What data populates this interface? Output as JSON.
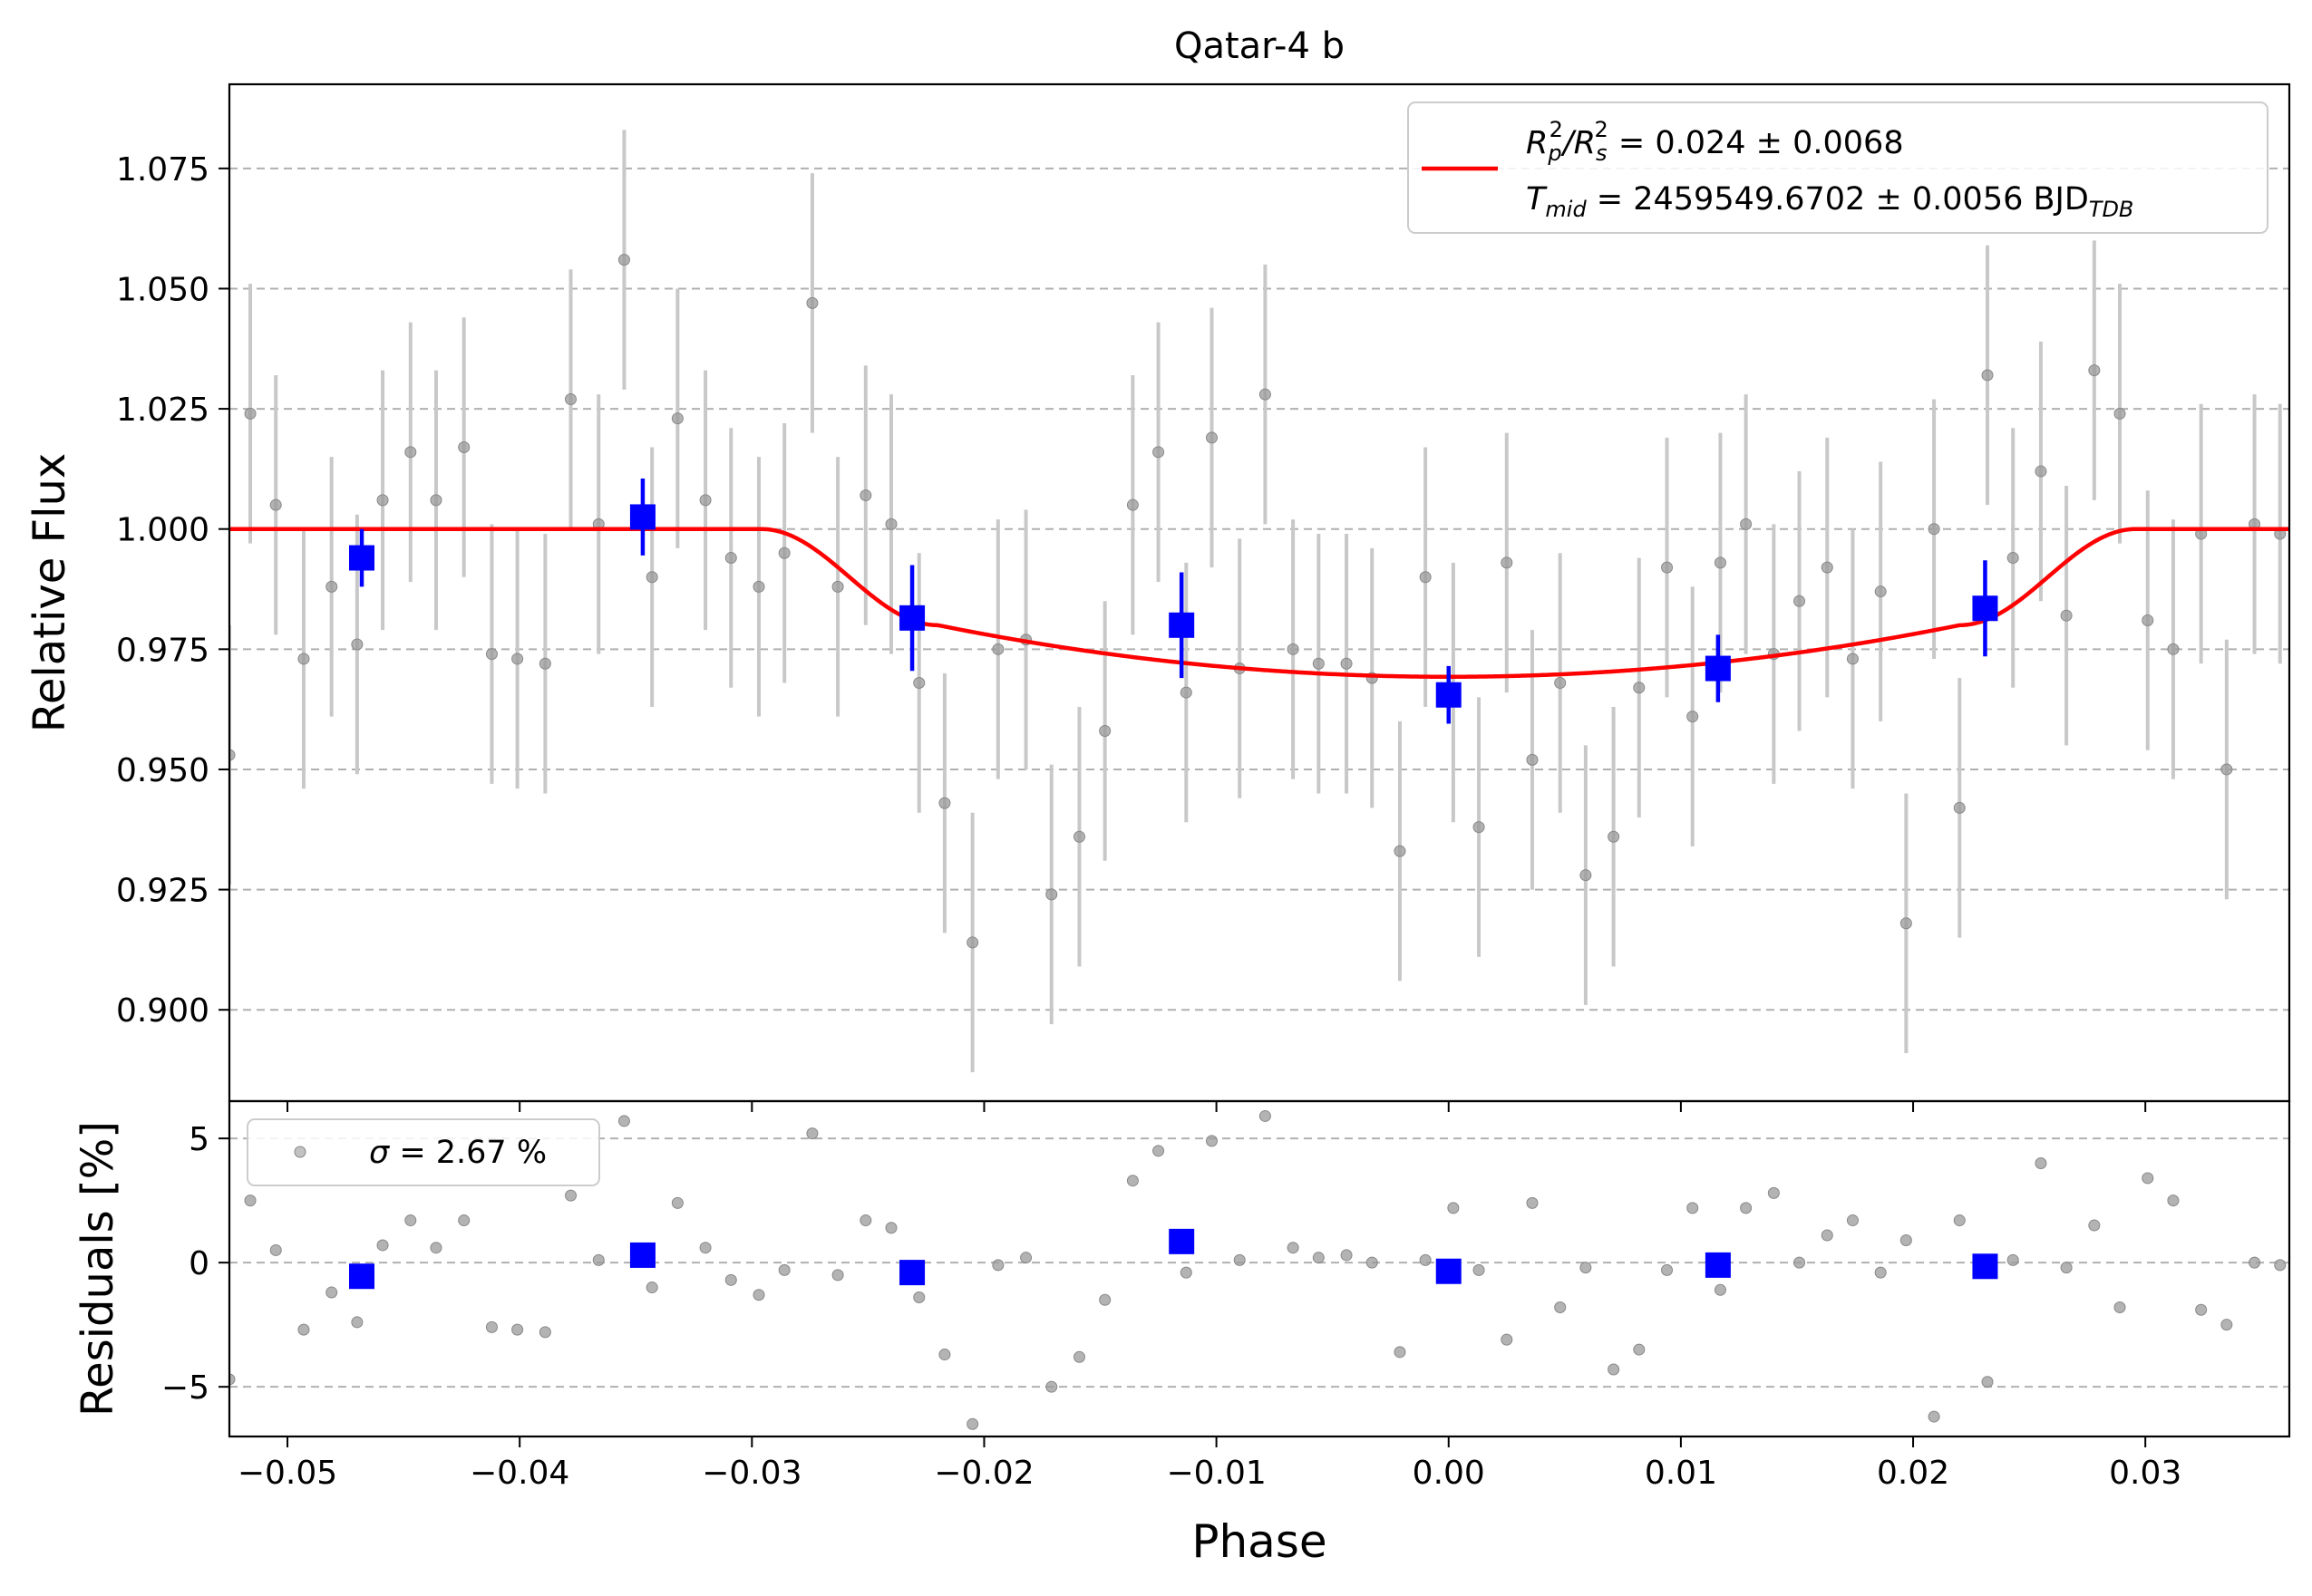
{
  "chart_data": [
    {
      "type": "scatter",
      "panel": "flux",
      "title": "Qatar-4 b",
      "xlabel": "",
      "ylabel": "Relative Flux",
      "xlim": [
        -0.0525,
        0.0362
      ],
      "ylim": [
        0.881,
        1.0925
      ],
      "yticks": [
        0.9,
        0.925,
        0.95,
        0.975,
        1.0,
        1.025,
        1.05,
        1.075
      ],
      "ytick_labels": [
        "0.900",
        "0.925",
        "0.950",
        "0.975",
        "1.000",
        "1.025",
        "1.050",
        "1.075"
      ],
      "grid": "horizontal dashed",
      "legend_placement": "top-right",
      "legend": {
        "line1": {
          "pre": "R",
          "sub1": "p",
          "sup1": "2",
          "mid": "/R",
          "sub2": "s",
          "sup2": "2",
          "post": " = 0.024 ± 0.0068"
        },
        "line2": {
          "pre": "T",
          "sub": "mid",
          "post": " = 2459549.6702 ± 0.0056 BJD",
          "post_sub": "TDB"
        }
      },
      "model_params": {
        "baseline": 1.0,
        "depth": 0.0307,
        "t_contact1": -0.0296,
        "t_contact2": -0.022,
        "t_contact3": 0.022,
        "t_contact4": 0.0296
      },
      "colors": {
        "raw": "#999999",
        "raw_err": "#c8c8c8",
        "binned": "#0000ff",
        "model": "#ff0000",
        "grid": "#b0b0b0"
      },
      "raw_points": {
        "x": [
          -0.0525,
          -0.0516,
          -0.0505,
          -0.0493,
          -0.0481,
          -0.047,
          -0.0459,
          -0.0447,
          -0.0436,
          -0.0424,
          -0.0412,
          -0.0401,
          -0.0389,
          -0.0378,
          -0.0366,
          -0.0355,
          -0.0343,
          -0.0332,
          -0.032,
          -0.0309,
          -0.0297,
          -0.0286,
          -0.0274,
          -0.0263,
          -0.0251,
          -0.024,
          -0.0228,
          -0.0217,
          -0.0205,
          -0.0194,
          -0.0182,
          -0.0171,
          -0.0159,
          -0.0148,
          -0.0136,
          -0.0125,
          -0.0113,
          -0.0102,
          -0.009,
          -0.0079,
          -0.0067,
          -0.0056,
          -0.0044,
          -0.0033,
          -0.0021,
          -0.001,
          0.0002,
          0.0013,
          0.0025,
          0.0036,
          0.0048,
          0.0059,
          0.0071,
          0.0082,
          0.0094,
          0.0105,
          0.0117,
          0.0128,
          0.014,
          0.0151,
          0.0163,
          0.0174,
          0.0186,
          0.0197,
          0.0209,
          0.022,
          0.0232,
          0.0243,
          0.0255,
          0.0266,
          0.0278,
          0.0289,
          0.0301,
          0.0312,
          0.0324,
          0.0335,
          0.0347,
          0.0358
        ],
        "y": [
          0.953,
          1.024,
          1.005,
          0.973,
          0.988,
          0.976,
          1.006,
          1.016,
          1.006,
          1.017,
          0.974,
          0.973,
          0.972,
          1.027,
          1.001,
          1.056,
          0.99,
          1.023,
          1.006,
          0.994,
          0.988,
          0.995,
          1.047,
          0.988,
          1.007,
          1.001,
          0.968,
          0.943,
          0.914,
          0.975,
          0.977,
          0.924,
          0.936,
          0.958,
          1.005,
          1.016,
          0.966,
          1.019,
          0.971,
          1.028,
          0.975,
          0.972,
          0.972,
          0.969,
          0.933,
          0.99,
          0.966,
          0.938,
          0.993,
          0.952,
          0.968,
          0.928,
          0.936,
          0.967,
          0.992,
          0.961,
          0.993,
          1.001,
          0.974,
          0.985,
          0.992,
          0.973,
          0.987,
          0.918,
          1.0,
          0.942,
          1.032,
          0.994,
          1.012,
          0.982,
          1.033,
          1.024,
          0.981,
          0.975,
          0.999,
          0.95,
          1.001,
          0.999
        ],
        "yerr": 0.027
      },
      "binned_points": {
        "x": [
          -0.0468,
          -0.0347,
          -0.0231,
          -0.0115,
          0.0,
          0.0116,
          0.0231
        ],
        "y": [
          0.994,
          1.0025,
          0.9815,
          0.98,
          0.9655,
          0.971,
          0.9835
        ],
        "yerr": [
          0.006,
          0.008,
          0.011,
          0.011,
          0.006,
          0.007,
          0.01
        ]
      }
    },
    {
      "type": "scatter",
      "panel": "residuals",
      "xlabel": "Phase",
      "ylabel": "Residuals [%]",
      "xlim": [
        -0.0525,
        0.0362
      ],
      "ylim": [
        -7.0,
        6.5
      ],
      "xticks": [
        -0.05,
        -0.04,
        -0.03,
        -0.02,
        -0.01,
        0.0,
        0.01,
        0.02,
        0.03
      ],
      "xtick_labels": [
        "−0.05",
        "−0.04",
        "−0.03",
        "−0.02",
        "−0.01",
        "0.00",
        "0.01",
        "0.02",
        "0.03"
      ],
      "yticks": [
        -5,
        0,
        5
      ],
      "ytick_labels": [
        "−5",
        "0",
        "5"
      ],
      "grid": "horizontal dashed",
      "legend_placement": "top-left",
      "legend": {
        "symbol": "σ",
        "post": " = 2.67 %"
      },
      "raw_points": {
        "x": [
          -0.0525,
          -0.0516,
          -0.0505,
          -0.0493,
          -0.0481,
          -0.047,
          -0.0459,
          -0.0447,
          -0.0436,
          -0.0424,
          -0.0412,
          -0.0401,
          -0.0389,
          -0.0378,
          -0.0366,
          -0.0355,
          -0.0343,
          -0.0332,
          -0.032,
          -0.0309,
          -0.0297,
          -0.0286,
          -0.0274,
          -0.0263,
          -0.0251,
          -0.024,
          -0.0228,
          -0.0217,
          -0.0205,
          -0.0194,
          -0.0182,
          -0.0171,
          -0.0159,
          -0.0148,
          -0.0136,
          -0.0125,
          -0.0113,
          -0.0102,
          -0.009,
          -0.0079,
          -0.0067,
          -0.0056,
          -0.0044,
          -0.0033,
          -0.0021,
          -0.001,
          0.0002,
          0.0013,
          0.0025,
          0.0036,
          0.0048,
          0.0059,
          0.0071,
          0.0082,
          0.0094,
          0.0105,
          0.0117,
          0.0128,
          0.014,
          0.0151,
          0.0163,
          0.0174,
          0.0186,
          0.0197,
          0.0209,
          0.022,
          0.0232,
          0.0243,
          0.0255,
          0.0266,
          0.0278,
          0.0289,
          0.0301,
          0.0312,
          0.0324,
          0.0335,
          0.0347,
          0.0358
        ],
        "y": [
          -4.7,
          2.5,
          0.5,
          -2.7,
          -1.2,
          -2.4,
          0.7,
          1.7,
          0.6,
          1.7,
          -2.6,
          -2.7,
          -2.8,
          2.7,
          0.1,
          5.7,
          -1.0,
          2.4,
          0.6,
          -0.7,
          -1.3,
          -0.3,
          5.2,
          -0.5,
          1.7,
          1.4,
          -1.4,
          -3.7,
          -6.5,
          -0.1,
          0.2,
          -5.0,
          -3.8,
          -1.5,
          3.3,
          4.5,
          -0.4,
          4.9,
          0.1,
          5.9,
          0.6,
          0.2,
          0.3,
          0.0,
          -3.6,
          0.1,
          2.2,
          -0.3,
          -3.1,
          2.4,
          -1.8,
          -0.2,
          -4.3,
          -3.5,
          -0.3,
          2.2,
          -1.1,
          2.2,
          2.8,
          0.0,
          1.1,
          1.7,
          -0.4,
          0.9,
          -6.2,
          1.7,
          -4.8,
          0.1,
          4.0,
          -0.2,
          1.5,
          -1.8,
          3.4,
          2.5,
          -1.9,
          -2.5,
          0.0,
          -0.1
        ]
      },
      "binned_points": {
        "x": [
          -0.0468,
          -0.0347,
          -0.0231,
          -0.0115,
          0.0,
          0.0116,
          0.0231
        ],
        "y": [
          -0.55,
          0.3,
          -0.4,
          0.85,
          -0.35,
          -0.1,
          -0.15
        ]
      }
    }
  ]
}
